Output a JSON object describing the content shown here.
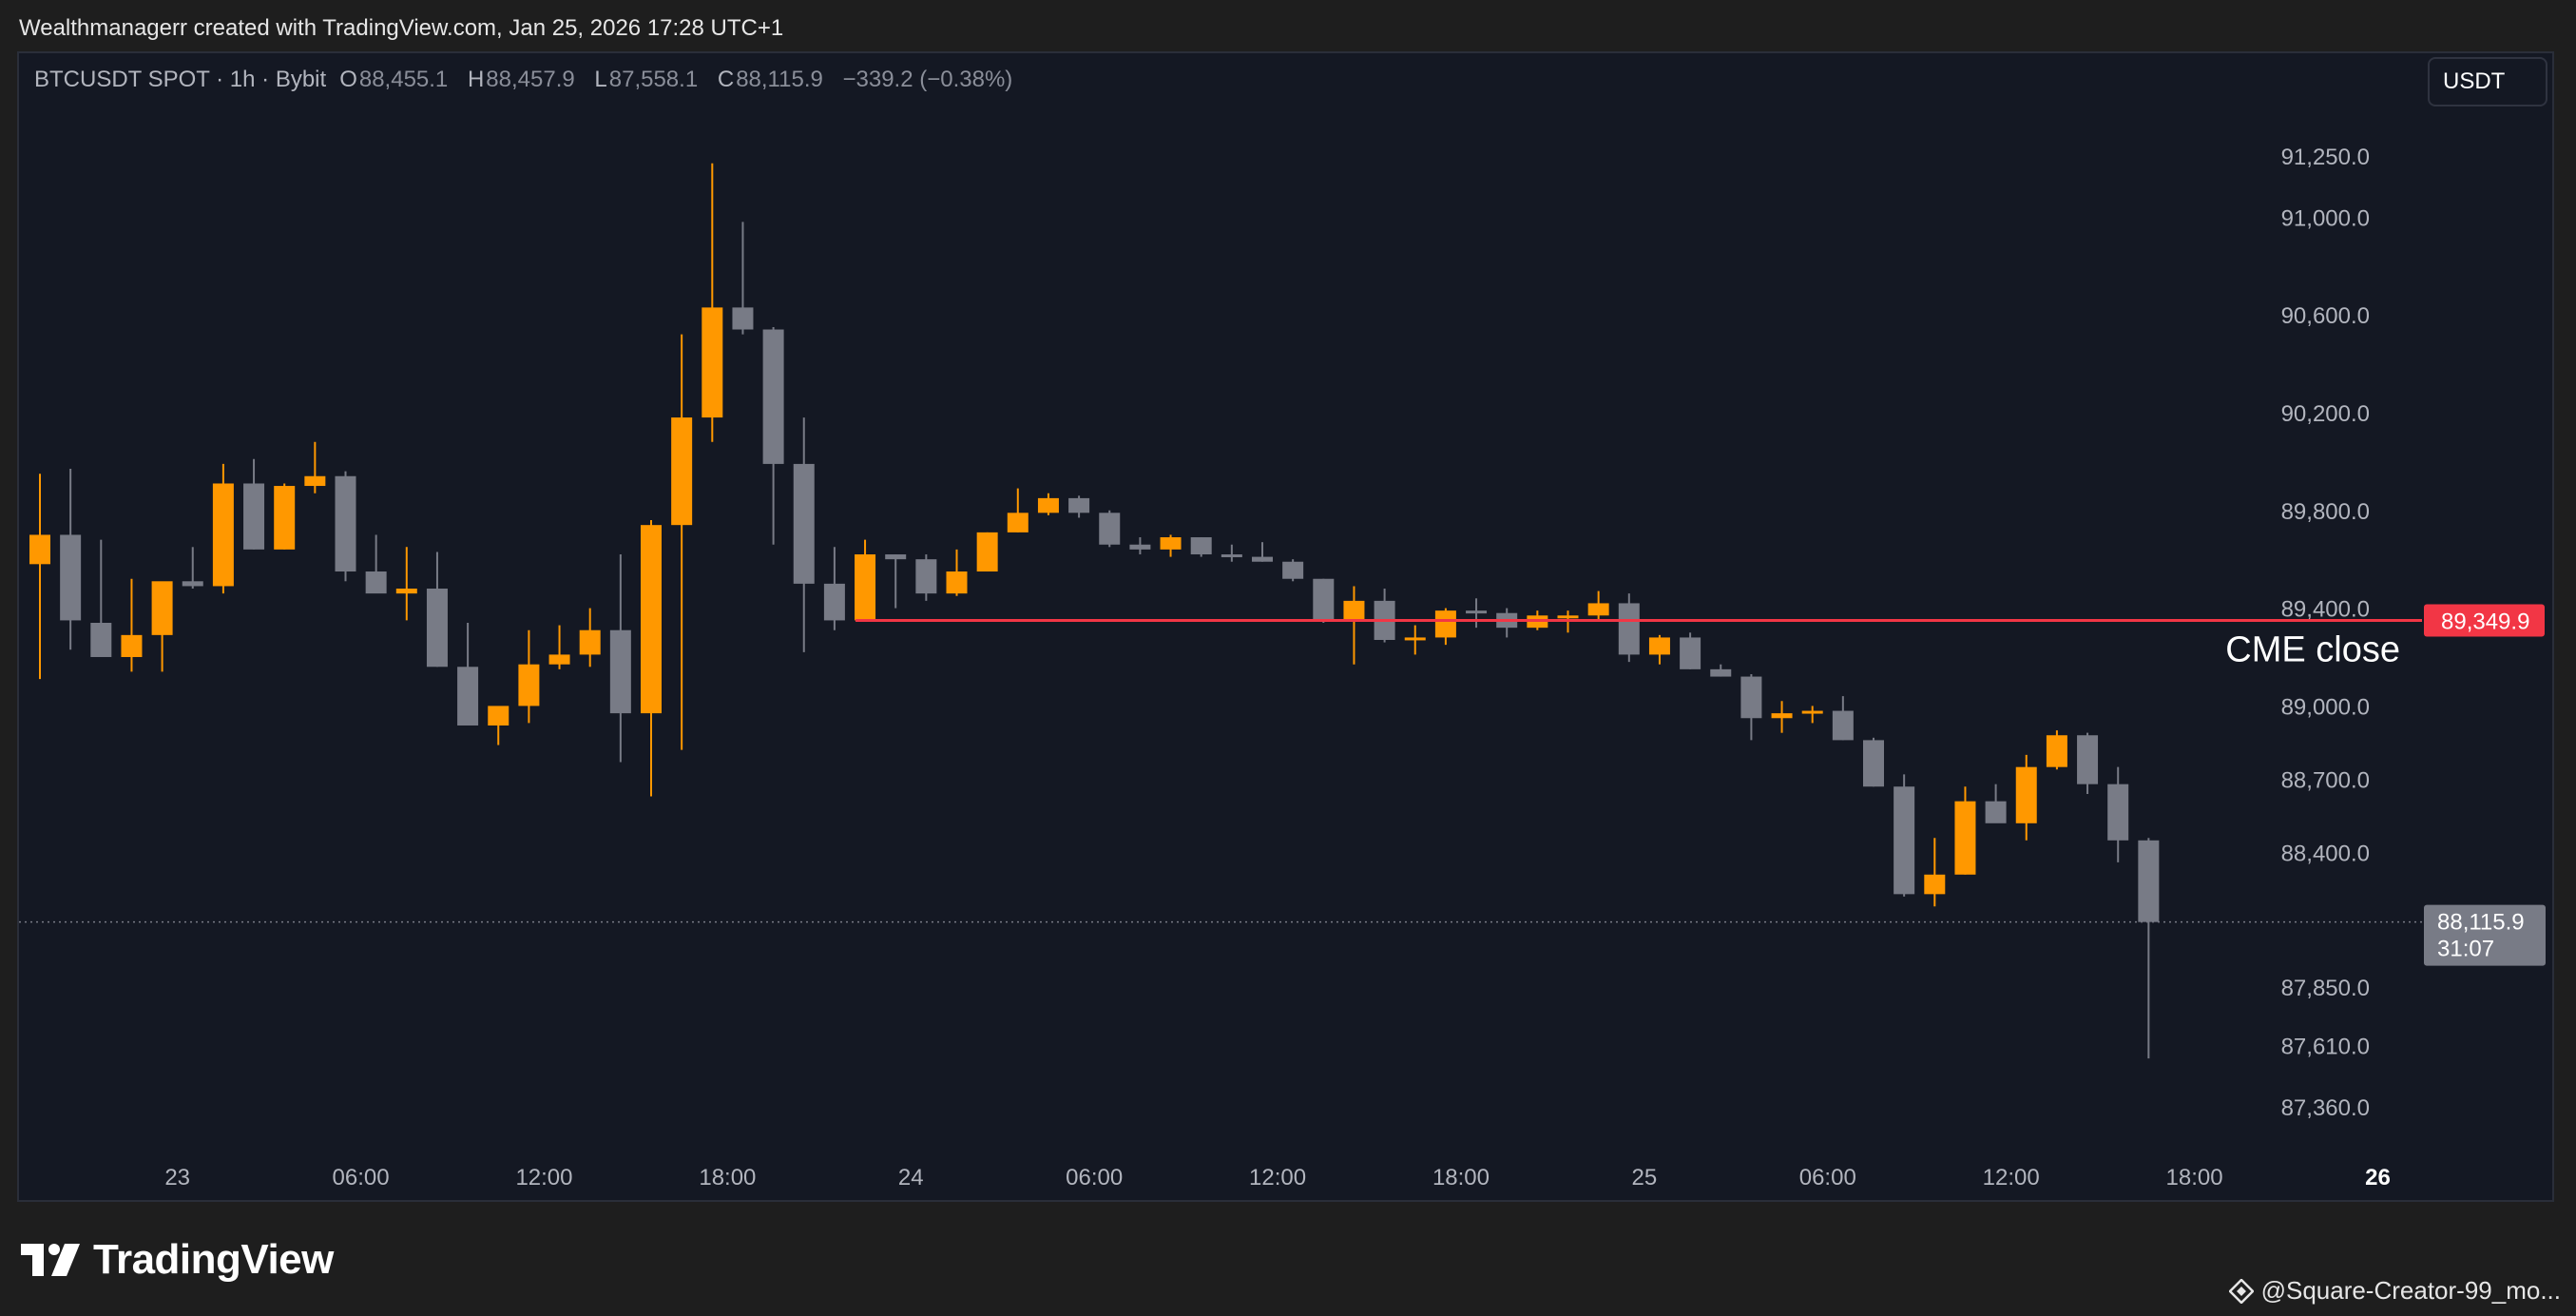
{
  "caption": "Wealthmanagerr created with TradingView.com, Jan 25, 2026 17:28 UTC+1",
  "legend": {
    "symbol": "BTCUSDT SPOT · 1h · Bybit",
    "o_label": "O",
    "o_value": "88,455.1",
    "h_label": "H",
    "h_value": "88,457.9",
    "l_label": "L",
    "l_value": "87,558.1",
    "c_label": "C",
    "c_value": "88,115.9",
    "change": "−339.2 (−0.38%)"
  },
  "currency_button": "USDT",
  "brand": "TradingView",
  "credit": "@Square-Creator-99_mo...",
  "colors": {
    "up": "#ff9800",
    "down": "#787b86",
    "line": "#f23645",
    "background": "#141823",
    "price_tag": "#787b86"
  },
  "chart_data": {
    "type": "candlestick",
    "interval": "1h",
    "y_ticks": [
      87360,
      87610,
      87850,
      88400,
      88700,
      89000,
      89400,
      89800,
      90200,
      90600,
      91000,
      91250
    ],
    "y_tick_labels": [
      "87,360.0",
      "87,610.0",
      "87,850.0",
      "88,400.0",
      "88,700.0",
      "89,000.0",
      "89,400.0",
      "89,800.0",
      "90,200.0",
      "90,600.0",
      "91,000.0",
      "91,250.0"
    ],
    "x_labels": [
      {
        "label": "23",
        "candle": 4.5,
        "bold": false
      },
      {
        "label": "06:00",
        "candle": 10.5,
        "bold": false
      },
      {
        "label": "12:00",
        "candle": 16.5,
        "bold": false
      },
      {
        "label": "18:00",
        "candle": 22.5,
        "bold": false
      },
      {
        "label": "24",
        "candle": 28.5,
        "bold": false
      },
      {
        "label": "06:00",
        "candle": 34.5,
        "bold": false
      },
      {
        "label": "12:00",
        "candle": 40.5,
        "bold": false
      },
      {
        "label": "18:00",
        "candle": 46.5,
        "bold": false
      },
      {
        "label": "25",
        "candle": 52.5,
        "bold": false
      },
      {
        "label": "06:00",
        "candle": 58.5,
        "bold": false
      },
      {
        "label": "12:00",
        "candle": 64.5,
        "bold": false
      },
      {
        "label": "18:00",
        "candle": 70.5,
        "bold": false
      },
      {
        "label": "26",
        "candle": 76.5,
        "bold": true
      }
    ],
    "ohlc": [
      [
        89580,
        89950,
        89110,
        89700
      ],
      [
        89700,
        89970,
        89230,
        89350
      ],
      [
        89340,
        89680,
        89200,
        89200
      ],
      [
        89200,
        89520,
        89140,
        89290
      ],
      [
        89290,
        89480,
        89140,
        89510
      ],
      [
        89510,
        89650,
        89480,
        89490
      ],
      [
        89490,
        89990,
        89460,
        89910
      ],
      [
        89910,
        90010,
        89640,
        89640
      ],
      [
        89640,
        89910,
        89640,
        89900
      ],
      [
        89900,
        90080,
        89870,
        89940
      ],
      [
        89940,
        89960,
        89510,
        89550
      ],
      [
        89550,
        89700,
        89470,
        89460
      ],
      [
        89460,
        89650,
        89350,
        89480
      ],
      [
        89480,
        89630,
        89160,
        89160
      ],
      [
        89160,
        89340,
        88930,
        88920
      ],
      [
        88920,
        88990,
        88840,
        89000
      ],
      [
        89000,
        89310,
        88930,
        89170
      ],
      [
        89170,
        89330,
        89150,
        89210
      ],
      [
        89210,
        89400,
        89160,
        89310
      ],
      [
        89310,
        89620,
        88770,
        88970
      ],
      [
        88970,
        89760,
        88630,
        89740
      ],
      [
        89740,
        90520,
        88820,
        90180
      ],
      [
        90180,
        91220,
        90080,
        90630
      ],
      [
        90630,
        90980,
        90520,
        90540
      ],
      [
        90540,
        90550,
        89660,
        89990
      ],
      [
        89990,
        90180,
        89220,
        89500
      ],
      [
        89500,
        89650,
        89310,
        89350
      ],
      [
        89350,
        89680,
        89350,
        89620
      ],
      [
        89620,
        89620,
        89400,
        89600
      ],
      [
        89600,
        89620,
        89430,
        89460
      ],
      [
        89460,
        89640,
        89450,
        89550
      ],
      [
        89550,
        89710,
        89550,
        89710
      ],
      [
        89710,
        89890,
        89710,
        89790
      ],
      [
        89790,
        89870,
        89780,
        89850
      ],
      [
        89850,
        89860,
        89770,
        89790
      ],
      [
        89790,
        89800,
        89650,
        89660
      ],
      [
        89660,
        89690,
        89620,
        89640
      ],
      [
        89640,
        89700,
        89610,
        89690
      ],
      [
        89690,
        89690,
        89610,
        89620
      ],
      [
        89620,
        89660,
        89590,
        89610
      ],
      [
        89610,
        89670,
        89590,
        89590
      ],
      [
        89590,
        89600,
        89510,
        89520
      ],
      [
        89520,
        89520,
        89340,
        89350
      ],
      [
        89350,
        89490,
        89170,
        89430
      ],
      [
        89430,
        89480,
        89260,
        89270
      ],
      [
        89270,
        89330,
        89210,
        89280
      ],
      [
        89280,
        89400,
        89250,
        89390
      ],
      [
        89390,
        89440,
        89320,
        89380
      ],
      [
        89380,
        89400,
        89280,
        89320
      ],
      [
        89320,
        89390,
        89310,
        89370
      ],
      [
        89370,
        89390,
        89300,
        89370
      ],
      [
        89370,
        89470,
        89350,
        89420
      ],
      [
        89420,
        89460,
        89180,
        89210
      ],
      [
        89210,
        89290,
        89170,
        89280
      ],
      [
        89280,
        89300,
        89150,
        89150
      ],
      [
        89150,
        89170,
        89120,
        89120
      ],
      [
        89120,
        89130,
        88860,
        88950
      ],
      [
        88950,
        89020,
        88890,
        88970
      ],
      [
        88970,
        89000,
        88930,
        88980
      ],
      [
        88980,
        89040,
        88860,
        88860
      ],
      [
        88860,
        88870,
        88670,
        88670
      ],
      [
        88670,
        88720,
        88220,
        88230
      ],
      [
        88230,
        88460,
        88180,
        88310
      ],
      [
        88310,
        88670,
        88310,
        88610
      ],
      [
        88610,
        88680,
        88540,
        88520
      ],
      [
        88520,
        88800,
        88450,
        88750
      ],
      [
        88750,
        88900,
        88740,
        88880
      ],
      [
        88880,
        88890,
        88640,
        88680
      ],
      [
        88680,
        88750,
        88360,
        88450
      ],
      [
        88450,
        88460,
        87558,
        88116
      ]
    ],
    "horizontal_lines": [
      {
        "name": "CME close",
        "price": 89349.9,
        "price_label": "89,349.9",
        "start_candle": 27,
        "text": "CME close"
      }
    ],
    "last_price": {
      "price": 88115.9,
      "label": "88,115.9",
      "countdown": "31:07"
    },
    "ylim": [
      87200,
      91400
    ]
  }
}
